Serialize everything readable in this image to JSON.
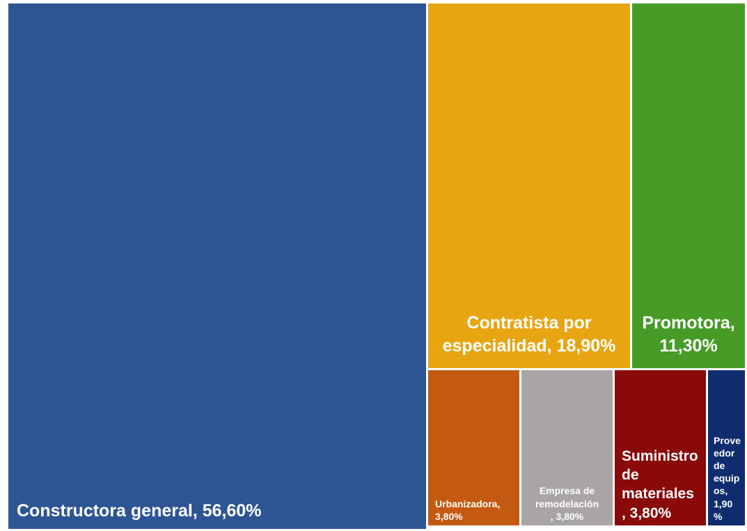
{
  "chart_data": {
    "type": "treemap",
    "title": "",
    "items": [
      {
        "name": "Constructora general",
        "value": 56.6,
        "label": "Constructora general, 56,60%",
        "color": "#2E5593"
      },
      {
        "name": "Contratista por especialidad",
        "value": 18.9,
        "label": "Contratista por\nespecialidad, 18,90%",
        "color": "#E8A512"
      },
      {
        "name": "Promotora",
        "value": 11.3,
        "label": "Promotora,\n11,30%",
        "color": "#479B27"
      },
      {
        "name": "Urbanizadora",
        "value": 3.8,
        "label": "Urbanizadora,\n3,80%",
        "color": "#C45911"
      },
      {
        "name": "Empresa de remodelación",
        "value": 3.8,
        "label": "Empresa de\nremodelación\n, 3,80%",
        "color": "#A8A5A4"
      },
      {
        "name": "Suministro de materiales",
        "value": 3.8,
        "label": "Suministro\nde\nmateriales\n, 3,80%",
        "color": "#8A0A0A"
      },
      {
        "name": "Proveedor de equipos",
        "value": 1.9,
        "label": "Prove\nedor\nde\nequip\nos,\n1,90\n%",
        "color": "#0F2D6E"
      }
    ]
  }
}
